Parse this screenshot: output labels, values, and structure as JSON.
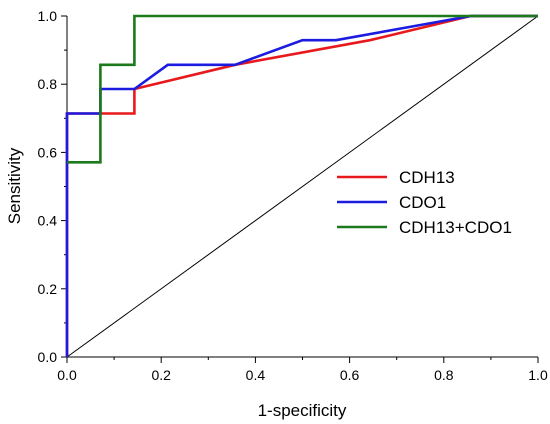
{
  "chart_data": {
    "type": "line",
    "title": "",
    "xlabel": "1-specificity",
    "ylabel": "Sensitivity",
    "xlim": [
      0,
      1
    ],
    "ylim": [
      0,
      1
    ],
    "x_ticks": [
      "0.0",
      "0.2",
      "0.4",
      "0.6",
      "0.8",
      "1.0"
    ],
    "y_ticks": [
      "0.0",
      "0.2",
      "0.4",
      "0.6",
      "0.8",
      "1.0"
    ],
    "legend_position": "right",
    "grid": false,
    "series": [
      {
        "name": "CDH13",
        "color": "#e8191c",
        "points": [
          [
            0,
            0
          ],
          [
            0,
            0.714
          ],
          [
            0.071,
            0.714
          ],
          [
            0.143,
            0.714
          ],
          [
            0.143,
            0.786
          ],
          [
            0.357,
            0.857
          ],
          [
            0.643,
            0.929
          ],
          [
            0.857,
            1.0
          ],
          [
            1.0,
            1.0
          ]
        ]
      },
      {
        "name": "CDO1",
        "color": "#1c1ce0",
        "points": [
          [
            0,
            0
          ],
          [
            0,
            0.714
          ],
          [
            0.071,
            0.714
          ],
          [
            0.071,
            0.786
          ],
          [
            0.143,
            0.786
          ],
          [
            0.214,
            0.857
          ],
          [
            0.357,
            0.857
          ],
          [
            0.5,
            0.929
          ],
          [
            0.571,
            0.929
          ],
          [
            0.857,
            1.0
          ],
          [
            1.0,
            1.0
          ]
        ]
      },
      {
        "name": "CDH13+CDO1",
        "color": "#1b7a1b",
        "points": [
          [
            0,
            0.571
          ],
          [
            0.071,
            0.571
          ],
          [
            0.071,
            0.857
          ],
          [
            0.143,
            0.857
          ],
          [
            0.143,
            1.0
          ],
          [
            1.0,
            1.0
          ]
        ]
      },
      {
        "name": "",
        "color": "#000000",
        "points": [
          [
            0,
            0
          ],
          [
            1,
            1
          ]
        ]
      }
    ]
  }
}
